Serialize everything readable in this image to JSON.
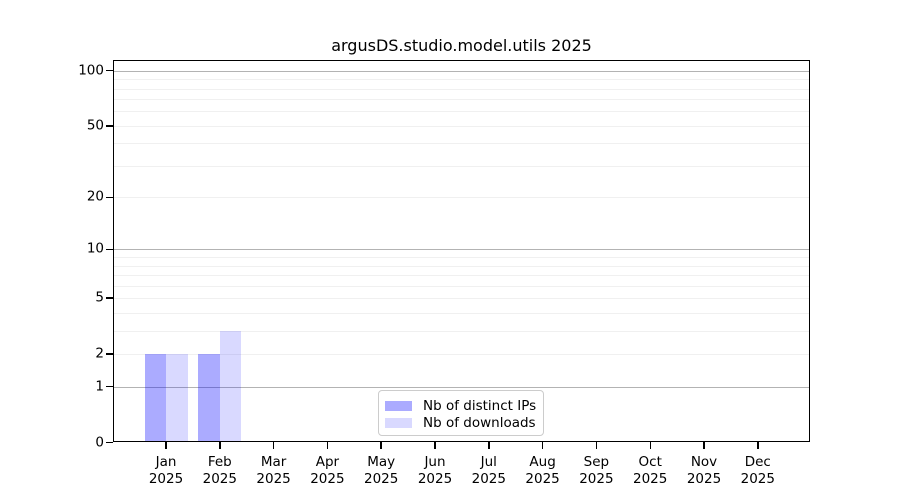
{
  "title": "argusDS.studio.model.utils 2025",
  "legend": {
    "items": [
      {
        "label": "Nb of distinct IPs",
        "color": "rgba(0,0,255,0.33)"
      },
      {
        "label": "Nb of downloads",
        "color": "rgba(0,0,255,0.15)"
      }
    ]
  },
  "axes": {
    "y_tick_labels": [
      "0",
      "1",
      "2",
      "5",
      "10",
      "20",
      "50",
      "100"
    ],
    "x_tick_labels_line1": [
      "Jan",
      "Feb",
      "Mar",
      "Apr",
      "May",
      "Jun",
      "Jul",
      "Aug",
      "Sep",
      "Oct",
      "Nov",
      "Dec"
    ],
    "x_tick_labels_line2": [
      "2025",
      "2025",
      "2025",
      "2025",
      "2025",
      "2025",
      "2025",
      "2025",
      "2025",
      "2025",
      "2025",
      "2025"
    ]
  },
  "colors": {
    "bar_distinct_ips": "rgba(0,0,255,0.33)",
    "bar_downloads": "rgba(0,0,255,0.15)",
    "grid_major": "#b3b3b3",
    "grid_minor": "#f0f0f0",
    "frame": "#000000"
  },
  "chart_data": {
    "type": "bar",
    "title": "argusDS.studio.model.utils 2025",
    "categories": [
      "Jan 2025",
      "Feb 2025",
      "Mar 2025",
      "Apr 2025",
      "May 2025",
      "Jun 2025",
      "Jul 2025",
      "Aug 2025",
      "Sep 2025",
      "Oct 2025",
      "Nov 2025",
      "Dec 2025"
    ],
    "series": [
      {
        "name": "Nb of distinct IPs",
        "color": "rgba(0,0,255,0.33)",
        "values": [
          2,
          2,
          0,
          0,
          0,
          0,
          0,
          0,
          0,
          0,
          0,
          0
        ]
      },
      {
        "name": "Nb of downloads",
        "color": "rgba(0,0,255,0.15)",
        "values": [
          2,
          3,
          0,
          0,
          0,
          0,
          0,
          0,
          0,
          0,
          0,
          0
        ]
      }
    ],
    "xlabel": "",
    "ylabel": "",
    "yscale": "log10(value+1)",
    "yticks": [
      0,
      1,
      2,
      5,
      10,
      20,
      50,
      100
    ],
    "ylim": [
      0,
      113
    ],
    "grid": "horizontal only; dark major lines at 1/10/100, faint minor lines at 2-9 per decade",
    "legend_position": "lower center"
  }
}
